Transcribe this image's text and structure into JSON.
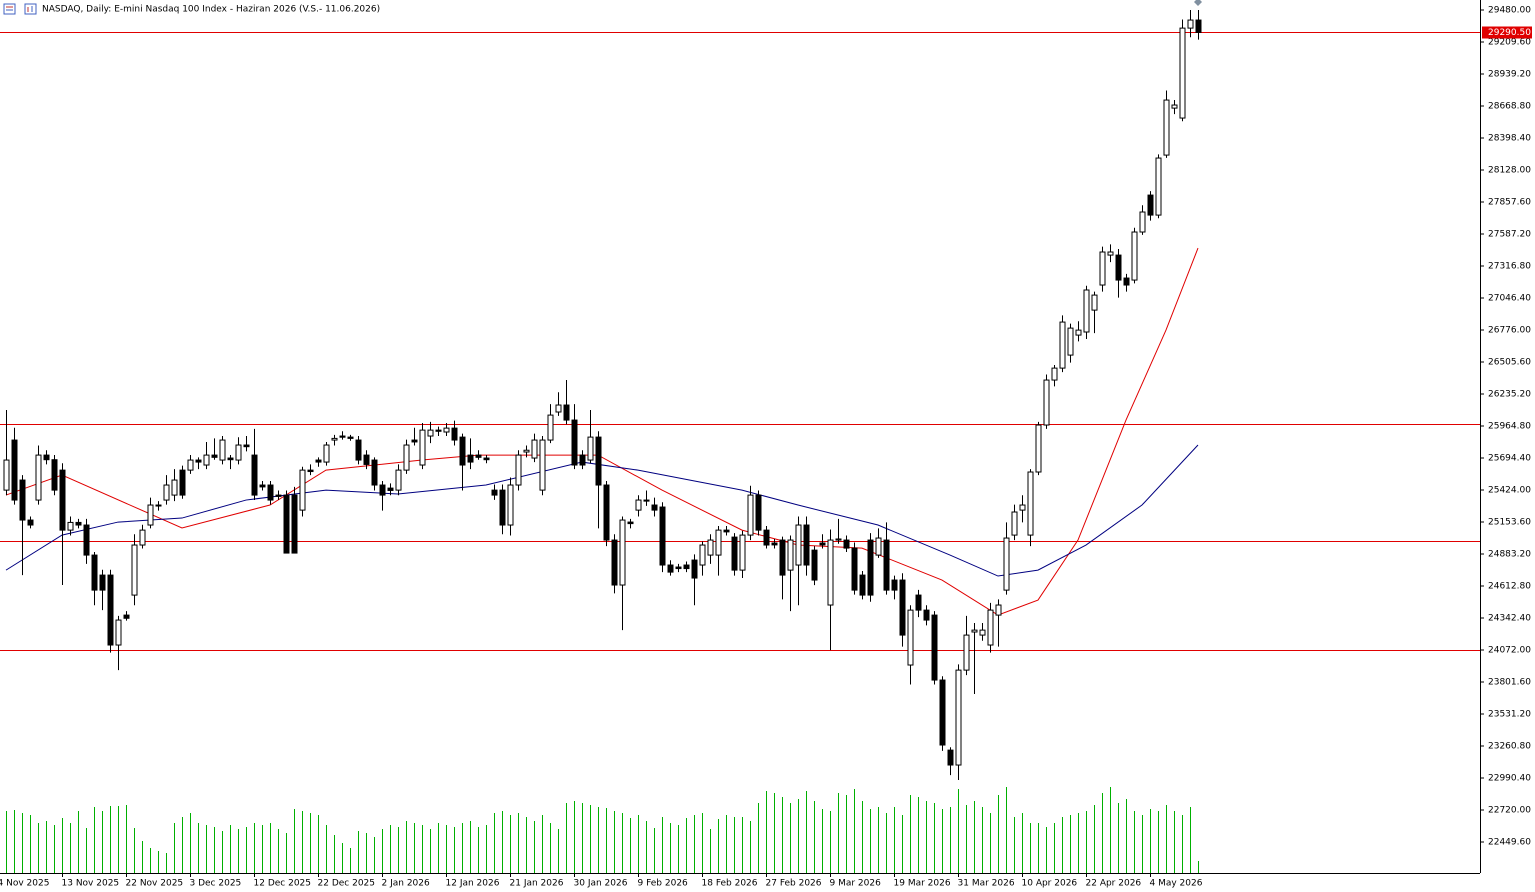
{
  "chart_data": {
    "type": "candlestick",
    "title": "NASDAQ, Daily:  E-mini Nasdaq 100 Index  -  Haziran 2026 (V.S.- 11.06.2026)",
    "up_color": "#ffffff",
    "down_color": "#000000",
    "volume_color": "#00b000",
    "xlim": [
      -0.75,
      184.25
    ],
    "ylim": [
      22187.6,
      29564.5
    ],
    "grid": false,
    "xticks": [
      {
        "value": -1,
        "label": "4 Nov 2025"
      },
      {
        "value": 7,
        "label": "13 Nov 2025"
      },
      {
        "value": 15,
        "label": "22 Nov 2025"
      },
      {
        "value": 23,
        "label": "3 Dec 2025"
      },
      {
        "value": 31,
        "label": "12 Dec 2025"
      },
      {
        "value": 39,
        "label": "22 Dec 2025"
      },
      {
        "value": 47,
        "label": "2 Jan 2026"
      },
      {
        "value": 55,
        "label": "12 Jan 2026"
      },
      {
        "value": 63,
        "label": "21 Jan 2026"
      },
      {
        "value": 71,
        "label": "30 Jan 2026"
      },
      {
        "value": 79,
        "label": "9 Feb 2026"
      },
      {
        "value": 87,
        "label": "18 Feb 2026"
      },
      {
        "value": 95,
        "label": "27 Feb 2026"
      },
      {
        "value": 103,
        "label": "9 Mar 2026"
      },
      {
        "value": 111,
        "label": "19 Mar 2026"
      },
      {
        "value": 119,
        "label": "31 Mar 2026"
      },
      {
        "value": 127,
        "label": "10 Apr 2026"
      },
      {
        "value": 135,
        "label": "22 Apr 2026"
      },
      {
        "value": 143,
        "label": "4 May 2026"
      }
    ],
    "yticks": [
      {
        "value": 29480,
        "label": "29480.00"
      },
      {
        "value": 29209.6,
        "label": "29209.60"
      },
      {
        "value": 28939.2,
        "label": "28939.20"
      },
      {
        "value": 28668.8,
        "label": "28668.80"
      },
      {
        "value": 28398.4,
        "label": "28398.40"
      },
      {
        "value": 28128,
        "label": "28128.00"
      },
      {
        "value": 27857.6,
        "label": "27857.60"
      },
      {
        "value": 27587.2,
        "label": "27587.20"
      },
      {
        "value": 27316.8,
        "label": "27316.80"
      },
      {
        "value": 27046.4,
        "label": "27046.40"
      },
      {
        "value": 26776,
        "label": "26776.00"
      },
      {
        "value": 26505.6,
        "label": "26505.60"
      },
      {
        "value": 26235.2,
        "label": "26235.20"
      },
      {
        "value": 25964.8,
        "label": "25964.80"
      },
      {
        "value": 25694.4,
        "label": "25694.40"
      },
      {
        "value": 25424,
        "label": "25424.00"
      },
      {
        "value": 25153.6,
        "label": "25153.60"
      },
      {
        "value": 24883.2,
        "label": "24883.20"
      },
      {
        "value": 24612.8,
        "label": "24612.80"
      },
      {
        "value": 24342.4,
        "label": "24342.40"
      },
      {
        "value": 24072,
        "label": "24072.00"
      },
      {
        "value": 23801.6,
        "label": "23801.60"
      },
      {
        "value": 23531.2,
        "label": "23531.20"
      },
      {
        "value": 23260.8,
        "label": "23260.80"
      },
      {
        "value": 22990.4,
        "label": "22990.40"
      },
      {
        "value": 22720,
        "label": "22720.00"
      },
      {
        "value": 22449.6,
        "label": "22449.60"
      }
    ],
    "hlines": [
      {
        "value": 29290.5,
        "label": "29290.50"
      },
      25981,
      24993,
      24071
    ],
    "hline_color": "#e00000",
    "ohlc": [
      [
        25423,
        26100,
        25380,
        25677
      ],
      [
        25846,
        25950,
        25300,
        25339
      ],
      [
        25508,
        25550,
        24705,
        25170
      ],
      [
        25170,
        25200,
        25100,
        25128
      ],
      [
        25339,
        25800,
        25300,
        25719
      ],
      [
        25719,
        25760,
        25640,
        25680
      ],
      [
        25680,
        25720,
        25380,
        25423
      ],
      [
        25592,
        25650,
        24621,
        25085
      ],
      [
        25085,
        25200,
        25040,
        25150
      ],
      [
        25150,
        25180,
        25100,
        25128
      ],
      [
        25128,
        25180,
        24800,
        24874
      ],
      [
        24874,
        24900,
        24450,
        24578
      ],
      [
        24705,
        24750,
        24409,
        24578
      ],
      [
        24705,
        24750,
        24050,
        24114
      ],
      [
        24114,
        24360,
        23902,
        24325
      ],
      [
        24367,
        24400,
        24320,
        24340
      ],
      [
        24536,
        25050,
        24450,
        24959
      ],
      [
        24959,
        25130,
        24930,
        25085
      ],
      [
        25128,
        25360,
        25100,
        25297
      ],
      [
        25297,
        25330,
        25250,
        25290
      ],
      [
        25339,
        25550,
        25300,
        25466
      ],
      [
        25381,
        25600,
        25330,
        25508
      ],
      [
        25592,
        25630,
        25350,
        25381
      ],
      [
        25592,
        25720,
        25560,
        25677
      ],
      [
        25677,
        25700,
        25600,
        25660
      ],
      [
        25635,
        25830,
        25600,
        25719
      ],
      [
        25719,
        25860,
        25680,
        25700
      ],
      [
        25677,
        25880,
        25640,
        25846
      ],
      [
        25694,
        25720,
        25600,
        25680
      ],
      [
        25677,
        25870,
        25640,
        25804
      ],
      [
        25804,
        25880,
        25750,
        25790
      ],
      [
        25719,
        25940,
        25339,
        25381
      ],
      [
        25466,
        25500,
        25420,
        25450
      ],
      [
        25466,
        25500,
        25300,
        25339
      ],
      [
        25381,
        25420,
        25340,
        25370
      ],
      [
        25381,
        25420,
        24891,
        24891
      ],
      [
        25381,
        25450,
        24891,
        24891
      ],
      [
        25254,
        25620,
        25200,
        25592
      ],
      [
        25592,
        25640,
        25550,
        25580
      ],
      [
        25677,
        25700,
        25620,
        25660
      ],
      [
        25660,
        25830,
        25630,
        25804
      ],
      [
        25846,
        25890,
        25800,
        25860
      ],
      [
        25880,
        25920,
        25850,
        25870
      ],
      [
        25871,
        25890,
        25840,
        25860
      ],
      [
        25846,
        25880,
        25640,
        25677
      ],
      [
        25719,
        25760,
        25600,
        25640
      ],
      [
        25677,
        25700,
        25420,
        25466
      ],
      [
        25466,
        25500,
        25250,
        25381
      ],
      [
        25440,
        25480,
        25380,
        25420
      ],
      [
        25423,
        25640,
        25380,
        25592
      ],
      [
        25592,
        25850,
        25560,
        25804
      ],
      [
        25846,
        25950,
        25800,
        25830
      ],
      [
        25635,
        25990,
        25600,
        25930
      ],
      [
        25880,
        26000,
        25820,
        25930
      ],
      [
        25930,
        25960,
        25880,
        25920
      ],
      [
        25914,
        25990,
        25880,
        25947
      ],
      [
        25947,
        26010,
        25800,
        25846
      ],
      [
        25871,
        25900,
        25420,
        25635
      ],
      [
        25719,
        25860,
        25600,
        25660
      ],
      [
        25719,
        25760,
        25680,
        25700
      ],
      [
        25694,
        25720,
        25650,
        25680
      ],
      [
        25423,
        25470,
        25340,
        25381
      ],
      [
        25423,
        25470,
        25050,
        25128
      ],
      [
        25128,
        25530,
        25040,
        25466
      ],
      [
        25466,
        25760,
        25420,
        25719
      ],
      [
        25745,
        25800,
        25700,
        25760
      ],
      [
        25694,
        25900,
        25660,
        25846
      ],
      [
        25423,
        25880,
        25380,
        25846
      ],
      [
        25846,
        26150,
        25820,
        26057
      ],
      [
        26083,
        26250,
        26050,
        26142
      ],
      [
        26142,
        26353,
        25980,
        26015
      ],
      [
        26015,
        26150,
        25600,
        25635
      ],
      [
        25719,
        25760,
        25600,
        25635
      ],
      [
        25677,
        26100,
        25650,
        25871
      ],
      [
        25871,
        25920,
        25100,
        25466
      ],
      [
        25466,
        25500,
        24950,
        25001
      ],
      [
        25001,
        25050,
        24550,
        24621
      ],
      [
        24621,
        25200,
        24240,
        25170
      ],
      [
        25153,
        25180,
        25100,
        25140
      ],
      [
        25254,
        25380,
        25200,
        25339
      ],
      [
        25339,
        25420,
        25290,
        25330
      ],
      [
        25297,
        25360,
        25200,
        25254
      ],
      [
        25280,
        25320,
        24730,
        24790
      ],
      [
        24790,
        24830,
        24700,
        24730
      ],
      [
        24773,
        24800,
        24730,
        24760
      ],
      [
        24790,
        24820,
        24730,
        24760
      ],
      [
        24832,
        24880,
        24450,
        24680
      ],
      [
        24790,
        24990,
        24700,
        24959
      ],
      [
        24874,
        25050,
        24800,
        25001
      ],
      [
        24874,
        25120,
        24700,
        25085
      ],
      [
        25085,
        25120,
        25040,
        25070
      ],
      [
        25026,
        25060,
        24700,
        24747
      ],
      [
        24747,
        25080,
        24680,
        25043
      ],
      [
        25043,
        25460,
        25000,
        25381
      ],
      [
        25381,
        25420,
        25040,
        25085
      ],
      [
        25085,
        25120,
        24930,
        24959
      ],
      [
        24976,
        25010,
        24930,
        24960
      ],
      [
        25001,
        25030,
        24500,
        24705
      ],
      [
        24747,
        25040,
        24400,
        25001
      ],
      [
        24790,
        25200,
        24450,
        25128
      ],
      [
        25128,
        25200,
        24700,
        24790
      ],
      [
        24916,
        24950,
        24620,
        24663
      ],
      [
        24976,
        25050,
        24930,
        24960
      ],
      [
        24452,
        25090,
        24071,
        25001
      ],
      [
        25001,
        25180,
        24970,
        25010
      ],
      [
        25001,
        25040,
        24900,
        24933
      ],
      [
        24933,
        24980,
        24540,
        24578
      ],
      [
        24705,
        24740,
        24500,
        24536
      ],
      [
        25001,
        25060,
        24480,
        24536
      ],
      [
        24874,
        25100,
        24850,
        25018
      ],
      [
        25001,
        25150,
        24540,
        24578
      ],
      [
        24663,
        24700,
        24500,
        24578
      ],
      [
        24663,
        24720,
        24100,
        24198
      ],
      [
        23945,
        24450,
        23780,
        24409
      ],
      [
        24536,
        24580,
        24350,
        24409
      ],
      [
        24409,
        24450,
        24280,
        24325
      ],
      [
        24367,
        24400,
        23780,
        23818
      ],
      [
        23818,
        23850,
        23220,
        23269
      ],
      [
        23226,
        23250,
        23015,
        23100
      ],
      [
        23100,
        23950,
        22973,
        23902
      ],
      [
        23902,
        24360,
        23860,
        24198
      ],
      [
        24224,
        24300,
        23700,
        24240
      ],
      [
        24198,
        24300,
        24150,
        24240
      ],
      [
        24114,
        24470,
        24050,
        24409
      ],
      [
        24367,
        24500,
        24100,
        24452
      ],
      [
        24578,
        25150,
        24540,
        25018
      ],
      [
        25043,
        25300,
        25000,
        25238
      ],
      [
        25254,
        25380,
        25150,
        25297
      ],
      [
        25043,
        25600,
        24950,
        25576
      ],
      [
        25576,
        26000,
        25550,
        25973
      ],
      [
        25973,
        26400,
        25940,
        26353
      ],
      [
        26353,
        26480,
        26300,
        26454
      ],
      [
        26454,
        26900,
        26420,
        26843
      ],
      [
        26564,
        26830,
        26500,
        26792
      ],
      [
        26733,
        26850,
        26680,
        26775
      ],
      [
        26759,
        27150,
        26700,
        27114
      ],
      [
        26944,
        27100,
        26750,
        27071
      ],
      [
        27156,
        27480,
        27100,
        27435
      ],
      [
        27409,
        27500,
        27350,
        27435
      ],
      [
        27409,
        27460,
        27050,
        27198
      ],
      [
        27215,
        27250,
        27100,
        27156
      ],
      [
        27198,
        27640,
        27170,
        27604
      ],
      [
        27604,
        27830,
        27580,
        27773
      ],
      [
        27916,
        27950,
        27700,
        27747
      ],
      [
        27747,
        28260,
        27720,
        28229
      ],
      [
        28254,
        28800,
        28230,
        28719
      ],
      [
        28651,
        28720,
        28600,
        28677
      ],
      [
        28567,
        29400,
        28540,
        29327
      ],
      [
        29327,
        29480,
        29250,
        29395
      ],
      [
        29395,
        29480,
        29230,
        29290.5
      ]
    ],
    "volume": [
      62,
      63,
      60,
      58,
      50,
      52,
      48,
      55,
      50,
      62,
      45,
      66,
      62,
      67,
      67,
      68,
      45,
      32,
      25,
      22,
      20,
      50,
      56,
      60,
      50,
      48,
      46,
      42,
      48,
      44,
      46,
      50,
      48,
      50,
      44,
      40,
      64,
      62,
      60,
      58,
      48,
      38,
      30,
      25,
      42,
      40,
      36,
      44,
      48,
      46,
      52,
      50,
      48,
      44,
      50,
      48,
      46,
      50,
      52,
      46,
      48,
      60,
      62,
      58,
      60,
      56,
      52,
      58,
      50,
      44,
      70,
      72,
      70,
      68,
      66,
      65,
      62,
      60,
      55,
      58,
      52,
      45,
      56,
      50,
      48,
      55,
      58,
      60,
      44,
      54,
      58,
      56,
      56,
      52,
      70,
      82,
      80,
      76,
      70,
      74,
      82,
      72,
      64,
      62,
      80,
      78,
      84,
      72,
      64,
      66,
      60,
      66,
      58,
      78,
      76,
      72,
      70,
      64,
      66,
      84,
      68,
      72,
      66,
      60,
      78,
      86,
      56,
      60,
      50,
      50,
      46,
      50,
      56,
      58,
      60,
      62,
      68,
      80,
      86,
      70,
      74,
      62,
      58,
      64,
      62,
      68,
      62,
      58,
      66,
      12
    ],
    "indicators": [
      {
        "color": "#e00000",
        "x": [
          0,
          7,
          22,
          33,
          40,
          52,
          59,
          69,
          74,
          82,
          92,
          99,
          107,
          117,
          124,
          129,
          134,
          140,
          145,
          149
        ],
        "values": [
          25381,
          25550,
          25103,
          25297,
          25592,
          25677,
          25719,
          25719,
          25719,
          25423,
          25085,
          24959,
          24933,
          24663,
          24367,
          24494,
          25001,
          26015,
          26775,
          27468
        ]
      },
      {
        "color": "#000080",
        "x": [
          0,
          7,
          14,
          22,
          30,
          40,
          49,
          60,
          72,
          79,
          92,
          99,
          109,
          118,
          124,
          129,
          135,
          142,
          149
        ],
        "values": [
          24747,
          25043,
          25153,
          25187,
          25339,
          25423,
          25390,
          25466,
          25660,
          25592,
          25423,
          25297,
          25128,
          24874,
          24697,
          24747,
          24959,
          25297,
          25804
        ]
      }
    ]
  }
}
